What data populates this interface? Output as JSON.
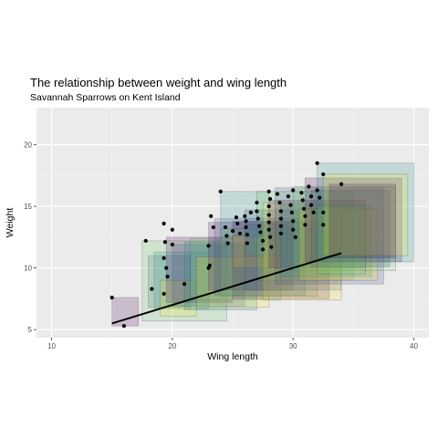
{
  "chart_data": {
    "type": "scatter",
    "title": "The relationship between weight and wing length",
    "subtitle": "Savannah Sparrows on Kent Island",
    "xlabel": "Wing length",
    "ylabel": "Weight",
    "xlim": [
      8.75,
      41.25
    ],
    "ylim": [
      4.35,
      23.0
    ],
    "x_ticks": [
      10,
      20,
      30,
      40
    ],
    "y_ticks": [
      5,
      10,
      15,
      20
    ],
    "grid": true,
    "legend": "none",
    "points": [
      [
        15,
        7.6
      ],
      [
        16,
        5.3
      ],
      [
        17.8,
        12.2
      ],
      [
        18.3,
        8.3
      ],
      [
        19.3,
        13.6
      ],
      [
        19.4,
        12.1
      ],
      [
        19.3,
        10.8
      ],
      [
        19.5,
        10.0
      ],
      [
        19.6,
        9.3
      ],
      [
        19.3,
        7.9
      ],
      [
        20.0,
        13.1
      ],
      [
        20.0,
        11.9
      ],
      [
        21.0,
        8.7
      ],
      [
        23.2,
        14.2
      ],
      [
        23.4,
        13.3
      ],
      [
        23.0,
        11.8
      ],
      [
        23.1,
        10.2
      ],
      [
        23.0,
        10.0
      ],
      [
        24.0,
        16.2
      ],
      [
        24.4,
        13.3
      ],
      [
        24.5,
        12.6
      ],
      [
        24.6,
        12.0
      ],
      [
        25.0,
        13.0
      ],
      [
        25.3,
        14.1
      ],
      [
        25.4,
        13.6
      ],
      [
        25.6,
        12.8
      ],
      [
        26.0,
        14.2
      ],
      [
        26.1,
        13.8
      ],
      [
        26.1,
        13.3
      ],
      [
        26.2,
        12.7
      ],
      [
        26.2,
        12.0
      ],
      [
        26.5,
        14.5
      ],
      [
        27.0,
        15.3
      ],
      [
        27.0,
        14.6
      ],
      [
        27.1,
        14.0
      ],
      [
        27.2,
        13.4
      ],
      [
        27.3,
        12.9
      ],
      [
        27.5,
        12.2
      ],
      [
        27.5,
        11.5
      ],
      [
        28.0,
        16.2
      ],
      [
        28.1,
        15.6
      ],
      [
        28.0,
        15.0
      ],
      [
        28.0,
        14.3
      ],
      [
        28.0,
        13.7
      ],
      [
        28.0,
        13.1
      ],
      [
        28.1,
        12.5
      ],
      [
        28.2,
        11.7
      ],
      [
        28.7,
        16.0
      ],
      [
        28.9,
        15.3
      ],
      [
        29.0,
        14.6
      ],
      [
        29.0,
        14.0
      ],
      [
        29.0,
        13.4
      ],
      [
        29.0,
        12.8
      ],
      [
        29.6,
        15.8
      ],
      [
        29.8,
        15.1
      ],
      [
        29.9,
        14.5
      ],
      [
        30.0,
        16.3
      ],
      [
        30.0,
        13.8
      ],
      [
        30.0,
        13.1
      ],
      [
        30.2,
        12.5
      ],
      [
        30.7,
        16.1
      ],
      [
        30.8,
        15.5
      ],
      [
        30.9,
        14.8
      ],
      [
        31.0,
        14.2
      ],
      [
        31.0,
        13.5
      ],
      [
        31.3,
        16.6
      ],
      [
        31.5,
        15.8
      ],
      [
        31.5,
        15.1
      ],
      [
        31.7,
        14.5
      ],
      [
        32.0,
        18.5
      ],
      [
        32.0,
        16.3
      ],
      [
        32.2,
        15.7
      ],
      [
        32.5,
        17.6
      ],
      [
        32.5,
        14.5
      ],
      [
        32.5,
        13.5
      ],
      [
        34.0,
        16.8
      ]
    ],
    "trend_line": {
      "x": [
        15,
        34
      ],
      "y": [
        5.5,
        11.2
      ]
    },
    "rects": [
      [
        15.0,
        17.2,
        5.3,
        7.6
      ],
      [
        18.0,
        21.5,
        6.8,
        11.0
      ],
      [
        18.5,
        23.0,
        6.7,
        11.3
      ],
      [
        17.5,
        24.5,
        5.7,
        12.2
      ],
      [
        19.0,
        22.0,
        6.1,
        9.0
      ],
      [
        19.5,
        25.0,
        7.2,
        12.5
      ],
      [
        20.0,
        26.0,
        6.9,
        11.9
      ],
      [
        21.0,
        27.0,
        6.6,
        12.1
      ],
      [
        21.5,
        29.0,
        7.4,
        12.4
      ],
      [
        22.0,
        28.0,
        6.8,
        10.9
      ],
      [
        23.0,
        30.0,
        8.2,
        13.7
      ],
      [
        23.5,
        31.0,
        7.8,
        14.0
      ],
      [
        24.0,
        28.0,
        12.5,
        16.2
      ],
      [
        24.0,
        32.0,
        7.7,
        13.2
      ],
      [
        25.0,
        29.0,
        10.0,
        12.6
      ],
      [
        25.0,
        33.0,
        7.5,
        13.8
      ],
      [
        26.0,
        34.0,
        8.2,
        14.7
      ],
      [
        26.0,
        29.5,
        11.0,
        13.5
      ],
      [
        27.0,
        35.0,
        9.0,
        16.2
      ],
      [
        27.5,
        34.0,
        7.4,
        15.3
      ],
      [
        28.0,
        36.0,
        10.0,
        15.5
      ],
      [
        28.5,
        37.5,
        8.7,
        16.5
      ],
      [
        29.0,
        36.5,
        9.3,
        15.1
      ],
      [
        30.0,
        38.5,
        9.8,
        16.6
      ],
      [
        30.5,
        37.0,
        9.0,
        14.8
      ],
      [
        31.0,
        39.0,
        10.5,
        17.3
      ],
      [
        31.5,
        38.0,
        10.1,
        16.3
      ],
      [
        32.0,
        40.0,
        10.5,
        18.5
      ],
      [
        32.0,
        36.0,
        9.5,
        15.0
      ],
      [
        32.5,
        39.5,
        11.0,
        17.6
      ],
      [
        33.0,
        38.5,
        10.8,
        16.8
      ]
    ],
    "rect_palette": [
      "#440154",
      "#3b528b",
      "#21908c",
      "#5dc863",
      "#fde725"
    ]
  }
}
